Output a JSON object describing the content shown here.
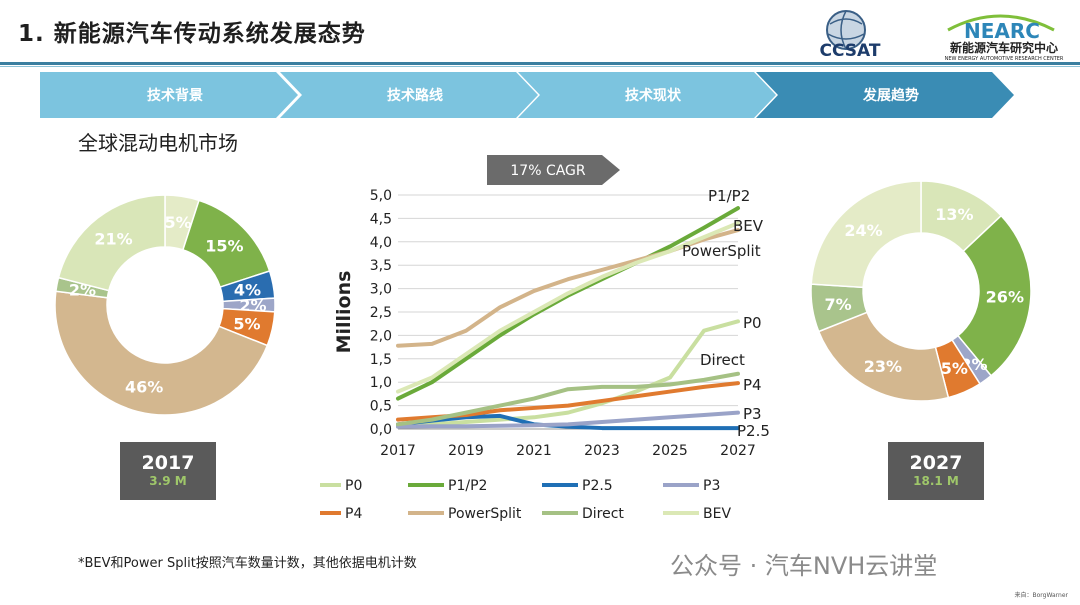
{
  "header": {
    "title": "1.  新能源汽车传动系统发展态势",
    "logo_left_text": "CCSAT",
    "logo_right_text": "NEARC",
    "logo_right_cn": "新能源汽车研究中心",
    "logo_right_en": "NEW ENERGY AUTOMOTIVE RESEARCH CENTER"
  },
  "nav": {
    "steps": [
      {
        "label": "技术背景"
      },
      {
        "label": "技术路线"
      },
      {
        "label": "技术现状"
      },
      {
        "label": "发展趋势"
      }
    ],
    "active_index": 3,
    "colors": {
      "inactive": "#7cc4df",
      "active": "#3a8cb4"
    }
  },
  "subtitle": "全球混动电机市场",
  "cagr_label": "17% CAGR",
  "footnote": "*BEV和Power Split按照汽车数量计数，其他依据电机计数",
  "source": "来自：BorgWarner",
  "watermark": "公众号 · 汽车NVH云讲堂",
  "chart_data": [
    {
      "type": "pie",
      "title": "2017",
      "subtitle": "3.9 M",
      "labels": [
        "5%",
        "15%",
        "4%",
        "2%",
        "5%",
        "46%",
        "2%",
        "21%"
      ],
      "values": [
        5,
        15,
        4,
        2,
        5,
        46,
        2,
        21
      ],
      "colors": [
        "#e4ebc7",
        "#7fb24a",
        "#2a6db0",
        "#9da6c8",
        "#e07a2f",
        "#d3b78f",
        "#a9c48c",
        "#d9e6b8"
      ]
    },
    {
      "type": "line",
      "ylabel": "Millions",
      "x": [
        2017,
        2018,
        2019,
        2020,
        2021,
        2022,
        2023,
        2024,
        2025,
        2026,
        2027
      ],
      "x_ticks": [
        "2017",
        "2019",
        "2021",
        "2023",
        "2025",
        "2027"
      ],
      "y_ticks": [
        "0,0",
        "0,5",
        "1,0",
        "1,5",
        "2,0",
        "2,5",
        "3,0",
        "3,5",
        "4,0",
        "4,5",
        "5,0"
      ],
      "ylim": [
        0,
        5
      ],
      "grid": true,
      "legend": "bottom",
      "series": [
        {
          "name": "P0",
          "color": "#c9dfa0",
          "values": [
            0.05,
            0.1,
            0.15,
            0.2,
            0.25,
            0.35,
            0.55,
            0.8,
            1.1,
            2.1,
            2.3
          ]
        },
        {
          "name": "P1/P2",
          "color": "#6aaa3a",
          "values": [
            0.65,
            1.0,
            1.5,
            2.0,
            2.45,
            2.85,
            3.2,
            3.55,
            3.9,
            4.3,
            4.72
          ]
        },
        {
          "name": "P2.5",
          "color": "#1f6fb5",
          "values": [
            0.1,
            0.18,
            0.25,
            0.28,
            0.1,
            0.05,
            0.02,
            0.02,
            0.02,
            0.02,
            0.02
          ]
        },
        {
          "name": "P3",
          "color": "#9aa3c8",
          "values": [
            0.05,
            0.06,
            0.06,
            0.07,
            0.08,
            0.1,
            0.15,
            0.2,
            0.25,
            0.3,
            0.35
          ]
        },
        {
          "name": "P4",
          "color": "#e07a2f",
          "values": [
            0.2,
            0.25,
            0.3,
            0.4,
            0.45,
            0.5,
            0.6,
            0.7,
            0.8,
            0.9,
            0.98
          ]
        },
        {
          "name": "PowerSplit",
          "color": "#d3b48a",
          "values": [
            1.78,
            1.82,
            2.1,
            2.6,
            2.95,
            3.2,
            3.4,
            3.6,
            3.8,
            4.05,
            4.25
          ]
        },
        {
          "name": "Direct",
          "color": "#a5c184",
          "values": [
            0.1,
            0.2,
            0.35,
            0.5,
            0.65,
            0.85,
            0.9,
            0.9,
            0.95,
            1.05,
            1.18
          ]
        },
        {
          "name": "BEV",
          "color": "#dbe8b5",
          "values": [
            0.8,
            1.1,
            1.6,
            2.1,
            2.5,
            2.9,
            3.25,
            3.55,
            3.8,
            4.1,
            4.4
          ]
        }
      ],
      "end_labels": [
        "P1/P2",
        "BEV",
        "PowerSplit",
        "P0",
        "Direct",
        "P4",
        "P3",
        "P2.5"
      ]
    },
    {
      "type": "pie",
      "title": "2027",
      "subtitle": "18.1 M",
      "labels": [
        "13%",
        "26%",
        "2%",
        "5%",
        "23%",
        "7%",
        "24%"
      ],
      "values": [
        13,
        26,
        2,
        5,
        23,
        7,
        24
      ],
      "colors": [
        "#d9e6b8",
        "#7fb24a",
        "#9da6c8",
        "#e07a2f",
        "#d3b78f",
        "#a9c48c",
        "#e4ebc7"
      ]
    }
  ]
}
